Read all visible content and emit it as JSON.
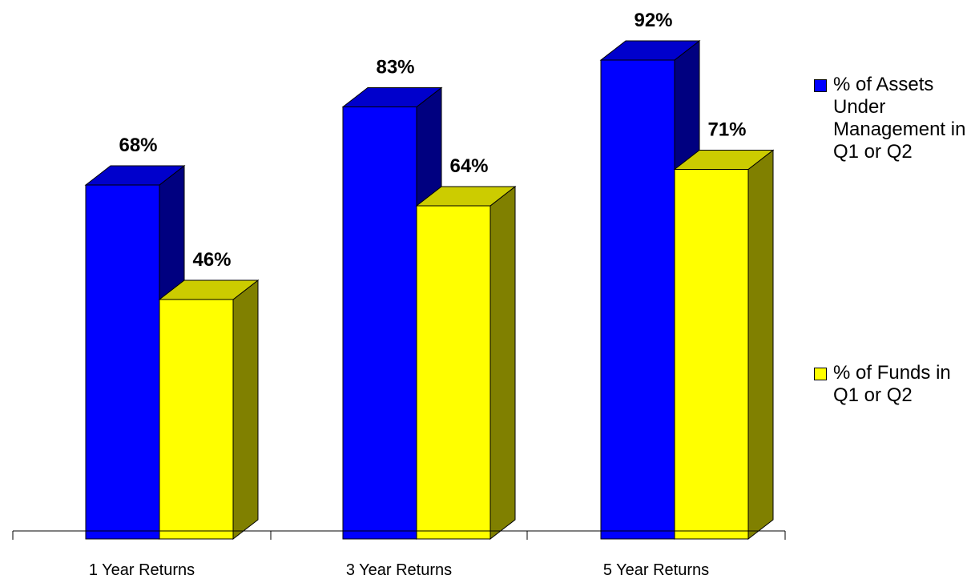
{
  "chart_data": {
    "type": "bar",
    "title": "",
    "xlabel": "",
    "ylabel": "",
    "ylim": [
      0,
      100
    ],
    "grid": false,
    "legend_position": "right",
    "categories": [
      "1 Year Returns",
      "3 Year Returns",
      "5 Year Returns"
    ],
    "series": [
      {
        "name": "% of Assets Under Management in Q1 or Q2",
        "values": [
          68,
          83,
          92
        ],
        "labels": [
          "68%",
          "83%",
          "92%"
        ],
        "color": "#0000FF",
        "top_color": "#0000CC",
        "side_color": "#000080"
      },
      {
        "name": "% of Funds in Q1 or Q2",
        "values": [
          46,
          64,
          71
        ],
        "labels": [
          "46%",
          "64%",
          "71%"
        ],
        "color": "#FFFF00",
        "top_color": "#CCCC00",
        "side_color": "#808000"
      }
    ]
  }
}
